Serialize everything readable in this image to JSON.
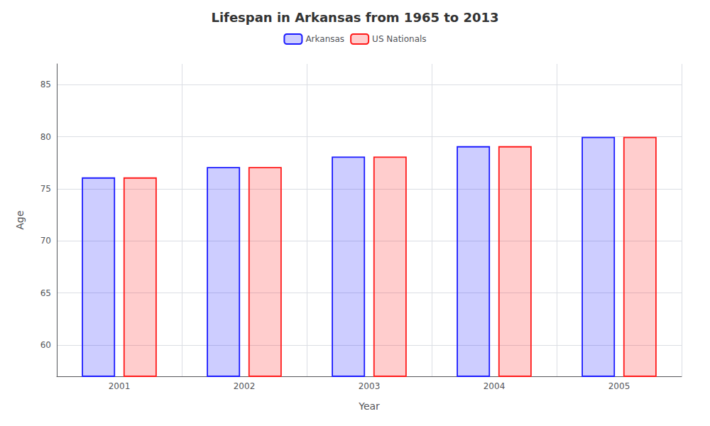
{
  "chart_data": {
    "type": "bar",
    "title": "Lifespan in Arkansas from 1965 to 2013",
    "xlabel": "Year",
    "ylabel": "Age",
    "categories": [
      "2001",
      "2002",
      "2003",
      "2004",
      "2005"
    ],
    "series": [
      {
        "name": "Arkansas",
        "color": "#1a1aff",
        "values": [
          76.1,
          77.1,
          78.1,
          79.1,
          80.0
        ]
      },
      {
        "name": "US Nationals",
        "color": "#ff1a1a",
        "values": [
          76.1,
          77.1,
          78.1,
          79.1,
          80.0
        ]
      }
    ],
    "ylim": [
      57,
      87
    ],
    "yticks": [
      60,
      65,
      70,
      75,
      80,
      85
    ],
    "grid": true,
    "legend": "top"
  }
}
